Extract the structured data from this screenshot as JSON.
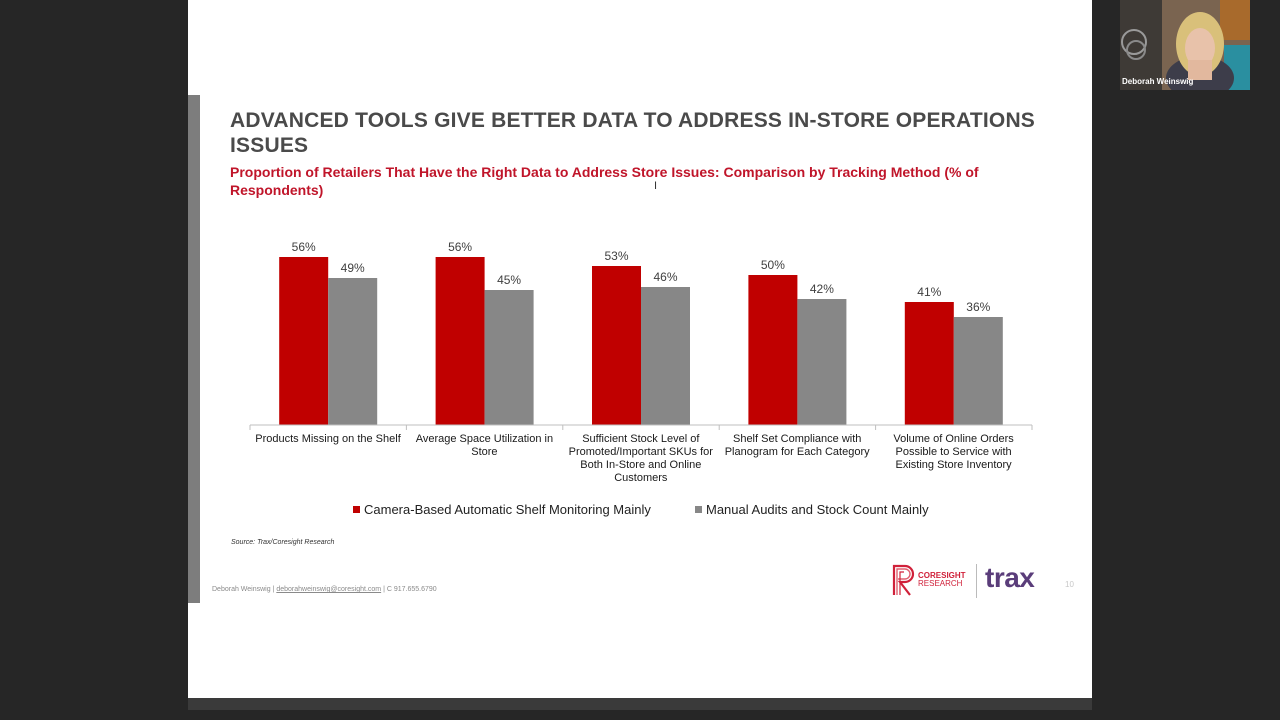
{
  "slide": {
    "title": "ADVANCED TOOLS GIVE BETTER DATA TO ADDRESS IN-STORE OPERATIONS ISSUES",
    "subtitle": "Proportion of Retailers That Have the Right Data to Address Store Issues: Comparison by Tracking Method (% of Respondents)",
    "source": "Source: Trax/Coresight Research",
    "footer": {
      "name": "Deborah Weinswig |",
      "email": "deborahweinswig@coresight.com",
      "phone": "| C 917.655.6790"
    },
    "logos": {
      "coresight_line1": "CORESIGHT",
      "coresight_line2": "RESEARCH",
      "trax": "trax"
    },
    "page_number": "10"
  },
  "webcam": {
    "participant_name": "Deborah Weinswig"
  },
  "chart_data": {
    "type": "bar",
    "categories": [
      "Products Missing on the Shelf",
      "Average Space Utilization in Store",
      "Sufficient Stock Level of Promoted/Important SKUs for Both In-Store and Online Customers",
      "Shelf Set Compliance with Planogram for Each Category",
      "Volume of Online Orders Possible to Service with Existing Store Inventory"
    ],
    "series": [
      {
        "name": "Camera-Based Automatic Shelf Monitoring Mainly",
        "values": [
          56,
          56,
          53,
          50,
          41
        ],
        "labels": [
          "56%",
          "56%",
          "53%",
          "50%",
          "41%"
        ],
        "color": "#c00000"
      },
      {
        "name": "Manual Audits and Stock Count Mainly",
        "values": [
          49,
          45,
          46,
          42,
          36
        ],
        "labels": [
          "49%",
          "45%",
          "46%",
          "42%",
          "36%"
        ],
        "color": "#878787"
      }
    ],
    "ylim": [
      0,
      60
    ],
    "grid": false,
    "legend_position": "bottom"
  }
}
